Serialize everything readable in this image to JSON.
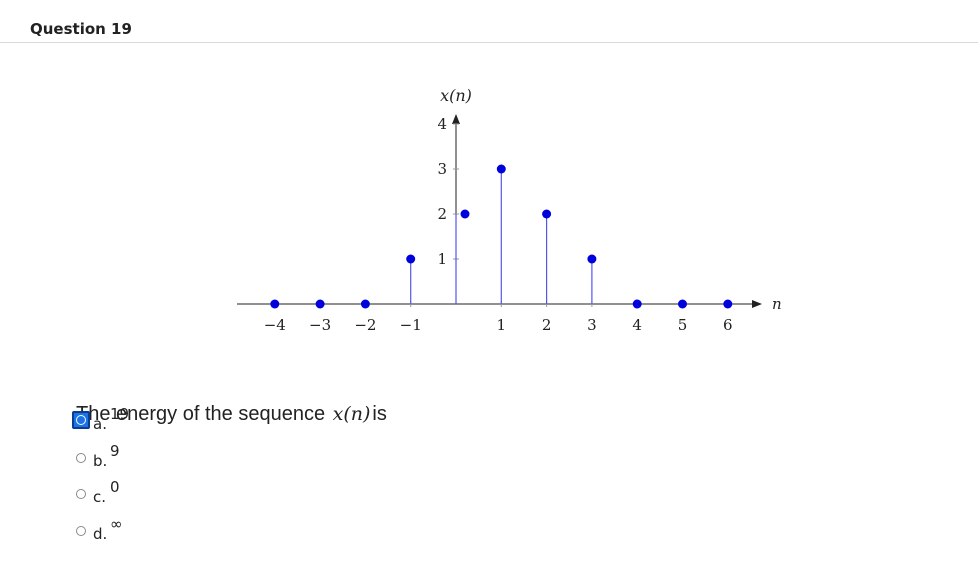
{
  "question": {
    "title": "Question 19",
    "prompt_before": "The energy of the sequence",
    "prompt_math": "x(n)",
    "prompt_after": "is"
  },
  "options": [
    {
      "letter": "a.",
      "text": "19",
      "selected": true
    },
    {
      "letter": "b.",
      "text": "9",
      "selected": false
    },
    {
      "letter": "c.",
      "text": "0",
      "selected": false
    },
    {
      "letter": "d.",
      "text": "∞",
      "selected": false
    }
  ],
  "chart_data": {
    "type": "stem",
    "ylabel": "x(n)",
    "xlabel": "n",
    "x": [
      -4,
      -3,
      -2,
      -1,
      0,
      1,
      2,
      3,
      4,
      5,
      6
    ],
    "values": [
      0,
      0,
      0,
      1,
      2,
      3,
      2,
      1,
      0,
      0,
      0
    ],
    "xticks": [
      "−4",
      "−3",
      "−2",
      "−1",
      "1",
      "2",
      "3",
      "4",
      "5",
      "6"
    ],
    "yticks": [
      "1",
      "2",
      "3",
      "4"
    ],
    "color": "#0000dd",
    "stem_color": "#5555ee"
  }
}
